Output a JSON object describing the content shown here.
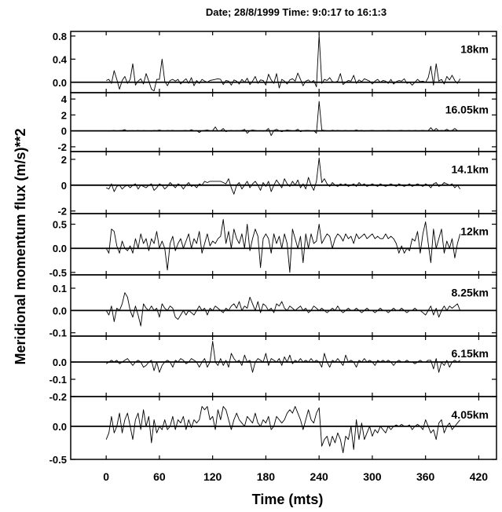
{
  "chart_data": {
    "type": "line",
    "title": "Date; 28/8/1999  Time:  9:0:17  to  16:1:3",
    "xlabel": "Time (mts)",
    "ylabel": "Meridional momentum flux (m/s)**2",
    "xlim": [
      -40,
      440
    ],
    "x_ticks": [
      0,
      60,
      120,
      180,
      240,
      300,
      360,
      420
    ],
    "x_tick_labels": [
      "0",
      "60",
      "120",
      "180",
      "240",
      "300",
      "360",
      "420"
    ],
    "grid": false,
    "x": [
      0,
      3,
      6,
      9,
      12,
      15,
      18,
      21,
      24,
      27,
      30,
      33,
      36,
      39,
      42,
      45,
      48,
      51,
      54,
      57,
      60,
      63,
      66,
      69,
      72,
      75,
      78,
      81,
      84,
      87,
      90,
      93,
      96,
      99,
      102,
      105,
      108,
      111,
      114,
      117,
      120,
      123,
      126,
      129,
      132,
      135,
      138,
      141,
      144,
      147,
      150,
      153,
      156,
      159,
      162,
      165,
      168,
      171,
      174,
      177,
      180,
      183,
      186,
      189,
      192,
      195,
      198,
      201,
      204,
      207,
      210,
      213,
      216,
      219,
      222,
      225,
      228,
      231,
      234,
      237,
      240,
      243,
      246,
      249,
      252,
      255,
      258,
      261,
      264,
      267,
      270,
      273,
      276,
      279,
      282,
      285,
      288,
      291,
      294,
      297,
      300,
      303,
      306,
      309,
      312,
      315,
      318,
      321,
      324,
      327,
      330,
      333,
      336,
      339,
      342,
      345,
      348,
      351,
      354,
      357,
      360,
      363,
      366,
      369,
      372,
      375,
      378,
      381,
      384,
      387,
      390,
      393,
      396,
      399
    ],
    "panels": [
      {
        "name": "18km",
        "ylim": [
          -0.18,
          0.88
        ],
        "y_ticks": [
          0.0,
          0.4,
          0.8
        ],
        "y_tick_labels": [
          "0.0",
          "0.4",
          "0.8"
        ],
        "values": [
          0.03,
          0.05,
          -0.02,
          0.2,
          0.05,
          -0.12,
          0.03,
          0.1,
          -0.02,
          0.05,
          0.32,
          -0.05,
          0.02,
          0.06,
          -0.03,
          0.15,
          0.02,
          -0.12,
          -0.15,
          0.05,
          0.05,
          0.4,
          0.02,
          -0.06,
          0.03,
          0.05,
          0.02,
          0.05,
          -0.03,
          0.02,
          0.06,
          -0.02,
          0.08,
          -0.06,
          0.03,
          -0.02,
          0.05,
          0.02,
          0.0,
          0.03,
          0.04,
          0.05,
          0.06,
          0.05,
          -0.04,
          0.03,
          0.02,
          -0.05,
          0.04,
          0.02,
          -0.03,
          0.05,
          0.0,
          0.07,
          -0.04,
          0.02,
          0.1,
          -0.02,
          0.04,
          0.03,
          -0.05,
          0.14,
          0.04,
          -0.02,
          0.15,
          -0.1,
          0.05,
          0.02,
          -0.03,
          0.04,
          0.06,
          0.02,
          0.16,
          0.05,
          -0.06,
          0.02,
          0.04,
          0.0,
          0.03,
          -0.08,
          0.82,
          -0.02,
          0.05,
          0.03,
          0.08,
          0.01,
          0.0,
          0.02,
          0.15,
          -0.04,
          0.0,
          0.03,
          0.02,
          0.12,
          -0.02,
          0.04,
          0.01,
          0.06,
          0.04,
          0.02,
          -0.03,
          0.02,
          0.05,
          0.0,
          0.03,
          0.02,
          -0.02,
          0.05,
          -0.03,
          0.01,
          0.03,
          0.02,
          0.06,
          -0.02,
          0.0,
          -0.05,
          0.0,
          0.05,
          0.01,
          0.02,
          0.0,
          0.08,
          0.28,
          -0.05,
          0.32,
          0.02,
          0.05,
          -0.03,
          0.1,
          0.04,
          0.12,
          0.03,
          -0.02,
          0.06
        ]
      },
      {
        "name": "16.05km",
        "ylim": [
          -2.6,
          4.8
        ],
        "y_ticks": [
          -2,
          0,
          2,
          4
        ],
        "y_tick_labels": [
          "-2",
          "0",
          "2",
          "4"
        ],
        "values": [
          0.0,
          -0.05,
          0.02,
          0.05,
          -0.03,
          0.03,
          0.05,
          0.15,
          -0.05,
          0.02,
          0.03,
          0.0,
          0.05,
          -0.02,
          0.04,
          0.02,
          0.0,
          -0.05,
          0.05,
          0.02,
          0.1,
          0.0,
          -0.03,
          0.05,
          0.02,
          0.06,
          -0.04,
          0.02,
          0.0,
          0.03,
          0.05,
          -0.02,
          0.15,
          0.0,
          0.04,
          -0.2,
          0.02,
          0.05,
          0.1,
          0.0,
          0.03,
          0.5,
          -0.05,
          0.02,
          0.3,
          -0.1,
          0.02,
          0.05,
          0.0,
          0.04,
          0.02,
          0.05,
          0.2,
          -0.3,
          0.02,
          0.1,
          0.05,
          0.0,
          0.03,
          -0.05,
          0.02,
          0.3,
          -0.6,
          0.05,
          0.2,
          0.0,
          -0.1,
          0.02,
          0.1,
          0.05,
          0.0,
          0.03,
          0.2,
          -0.1,
          0.0,
          0.05,
          0.05,
          0.0,
          0.03,
          -0.3,
          3.7,
          0.1,
          0.05,
          0.0,
          -0.05,
          0.08,
          0.0,
          0.05,
          0.02,
          0.0,
          0.05,
          -0.02,
          0.03,
          0.0,
          0.1,
          0.0,
          0.05,
          -0.05,
          0.02,
          0.03,
          0.05,
          0.0,
          0.02,
          -0.03,
          0.04,
          0.0,
          0.05,
          0.02,
          0.0,
          -0.02,
          0.03,
          0.05,
          0.0,
          0.02,
          0.04,
          -0.03,
          0.05,
          0.0,
          0.02,
          0.05,
          0.0,
          0.03,
          0.4,
          0.0,
          0.3,
          0.0,
          0.05,
          0.02,
          0.2,
          0.0,
          0.05,
          0.3,
          0.02,
          0.0
        ]
      },
      {
        "name": "14.1km",
        "ylim": [
          -2.2,
          2.6
        ],
        "y_ticks": [
          -2,
          0,
          2
        ],
        "y_tick_labels": [
          "-2",
          "0",
          "2"
        ],
        "values": [
          -0.2,
          -0.3,
          0.1,
          -0.5,
          -0.1,
          0.0,
          -0.3,
          -0.1,
          0.0,
          -0.2,
          0.0,
          0.1,
          -0.3,
          0.0,
          -0.1,
          -0.2,
          0.0,
          0.1,
          -0.4,
          -0.2,
          0.1,
          0.0,
          -0.3,
          -0.1,
          0.2,
          0.0,
          -0.2,
          0.1,
          0.0,
          -0.3,
          0.0,
          0.2,
          -0.1,
          0.0,
          -0.2,
          0.1,
          0.0,
          0.3,
          0.2,
          0.3,
          0.3,
          0.3,
          0.3,
          0.3,
          0.2,
          0.1,
          0.5,
          -0.2,
          -0.7,
          0.0,
          0.2,
          -0.3,
          0.0,
          0.3,
          -0.2,
          0.1,
          0.3,
          0.0,
          -0.4,
          0.2,
          -0.1,
          0.3,
          -0.5,
          0.0,
          0.4,
          0.1,
          -0.2,
          0.5,
          0.1,
          -0.1,
          0.3,
          0.0,
          0.4,
          -0.2,
          0.1,
          -0.3,
          0.6,
          0.0,
          -0.4,
          0.3,
          2.1,
          0.2,
          0.5,
          0.1,
          -0.1,
          0.2,
          0.0,
          -0.1,
          0.1,
          0.0,
          0.1,
          -0.1,
          0.0,
          0.1,
          -0.1,
          0.2,
          0.0,
          0.1,
          -0.1,
          0.0,
          0.1,
          0.0,
          -0.1,
          0.1,
          0.0,
          -0.1,
          0.0,
          0.1,
          0.0,
          -0.1,
          0.1,
          0.0,
          -0.1,
          0.0,
          0.1,
          -0.1,
          0.0,
          0.1,
          0.0,
          -0.1,
          0.1,
          0.0,
          -0.2,
          0.1,
          0.2,
          -0.1,
          0.0,
          0.2,
          0.1,
          0.0,
          0.1,
          -0.2,
          0.0,
          -0.3
        ]
      },
      {
        "name": "12km",
        "ylim": [
          -0.55,
          0.72
        ],
        "y_ticks": [
          -0.5,
          0.0,
          0.5
        ],
        "y_tick_labels": [
          "-0.5",
          "0.0",
          "0.5"
        ],
        "values": [
          0.0,
          -0.1,
          0.4,
          0.35,
          0.05,
          -0.1,
          0.15,
          0.0,
          -0.05,
          0.05,
          -0.1,
          0.2,
          0.0,
          0.3,
          0.1,
          0.2,
          -0.05,
          0.2,
          0.1,
          0.35,
          0.0,
          0.15,
          0.0,
          -0.45,
          0.1,
          0.25,
          -0.05,
          0.1,
          0.2,
          0.0,
          0.15,
          0.3,
          0.0,
          0.2,
          0.1,
          0.35,
          -0.1,
          0.1,
          0.3,
          0.05,
          0.15,
          0.1,
          0.2,
          0.25,
          0.6,
          0.1,
          0.35,
          0.0,
          0.4,
          0.2,
          0.1,
          0.3,
          0.0,
          0.5,
          -0.05,
          0.2,
          0.4,
          0.25,
          -0.4,
          0.2,
          0.3,
          0.2,
          -0.1,
          0.3,
          0.1,
          0.25,
          0.0,
          0.3,
          0.1,
          -0.5,
          0.4,
          0.2,
          0.0,
          0.25,
          -0.3,
          0.3,
          0.0,
          0.3,
          0.1,
          0.15,
          0.5,
          0.1,
          0.2,
          0.3,
          0.25,
          0.0,
          0.2,
          0.3,
          0.25,
          0.15,
          0.3,
          0.2,
          0.25,
          0.1,
          0.3,
          0.2,
          0.25,
          0.3,
          0.2,
          0.25,
          0.3,
          0.2,
          0.25,
          0.2,
          0.2,
          0.3,
          0.2,
          0.25,
          0.2,
          0.1,
          -0.1,
          0.05,
          -0.1,
          0.0,
          -0.05,
          0.2,
          0.15,
          0.35,
          -0.1,
          0.3,
          0.55,
          0.1,
          -0.3,
          0.4,
          0.0,
          0.2,
          0.4,
          -0.1,
          0.15,
          0.0,
          0.2,
          -0.2,
          0.1,
          0.3
        ]
      },
      {
        "name": "8.25km",
        "ylim": [
          -0.115,
          0.16
        ],
        "y_ticks": [
          -0.1,
          0.0,
          0.1
        ],
        "y_tick_labels": [
          "-0.1",
          "0.0",
          "0.1"
        ],
        "values": [
          0.0,
          -0.02,
          0.02,
          -0.05,
          0.01,
          0.0,
          0.03,
          0.08,
          0.06,
          0.0,
          -0.03,
          0.02,
          -0.02,
          -0.07,
          0.03,
          0.01,
          0.0,
          0.02,
          0.0,
          0.01,
          -0.03,
          0.03,
          0.01,
          0.0,
          0.02,
          0.01,
          -0.03,
          -0.04,
          -0.02,
          0.0,
          -0.02,
          0.0,
          -0.01,
          -0.02,
          0.0,
          0.02,
          0.0,
          0.01,
          -0.02,
          0.01,
          0.0,
          0.02,
          0.01,
          0.0,
          -0.01,
          0.01,
          0.0,
          0.02,
          0.03,
          0.01,
          0.04,
          0.0,
          0.02,
          0.01,
          0.06,
          0.03,
          0.0,
          0.04,
          -0.01,
          0.03,
          0.02,
          0.0,
          0.01,
          -0.01,
          0.03,
          0.02,
          0.04,
          0.01,
          0.0,
          0.02,
          0.01,
          0.0,
          0.01,
          0.02,
          0.0,
          0.01,
          -0.01,
          0.0,
          0.02,
          0.01,
          0.0,
          0.01,
          0.0,
          -0.01,
          0.0,
          0.01,
          0.0,
          0.02,
          0.0,
          -0.01,
          0.0,
          0.01,
          0.0,
          0.0,
          0.01,
          0.0,
          -0.01,
          0.0,
          0.01,
          0.0,
          0.0,
          -0.01,
          0.0,
          0.01,
          0.0,
          0.0,
          -0.01,
          0.0,
          0.01,
          0.0,
          0.0,
          0.01,
          0.0,
          -0.01,
          0.0,
          0.0,
          0.01,
          0.0,
          0.0,
          -0.01,
          -0.02,
          0.0,
          0.02,
          -0.02,
          0.01,
          -0.03,
          0.0,
          0.02,
          0.0,
          0.02,
          0.01,
          0.02,
          0.03,
          0.0
        ]
      },
      {
        "name": "6.15km",
        "ylim": [
          -0.2,
          0.15
        ],
        "y_ticks": [
          -0.2,
          -0.1,
          0.0
        ],
        "y_tick_labels": [
          "-0.2",
          "-0.1",
          "0.0"
        ],
        "values": [
          -0.01,
          0.0,
          0.01,
          0.0,
          0.01,
          -0.01,
          0.0,
          0.01,
          0.02,
          0.0,
          -0.02,
          0.0,
          0.01,
          0.0,
          -0.03,
          -0.02,
          0.0,
          0.01,
          -0.05,
          0.0,
          -0.06,
          -0.02,
          0.0,
          0.01,
          0.0,
          -0.03,
          0.01,
          0.0,
          0.02,
          0.01,
          -0.01,
          0.0,
          0.02,
          0.01,
          0.0,
          -0.03,
          0.0,
          0.02,
          -0.03,
          0.0,
          0.12,
          0.0,
          -0.02,
          0.02,
          -0.02,
          0.01,
          -0.03,
          0.05,
          0.02,
          0.0,
          0.01,
          -0.02,
          0.04,
          0.0,
          0.01,
          -0.06,
          0.0,
          0.02,
          0.01,
          0.0,
          0.05,
          -0.02,
          0.02,
          0.01,
          0.0,
          0.02,
          -0.02,
          0.03,
          0.0,
          0.04,
          -0.01,
          0.01,
          0.0,
          0.02,
          0.0,
          0.01,
          0.0,
          0.02,
          0.0,
          0.01,
          0.0,
          -0.03,
          0.05,
          0.0,
          -0.03,
          0.01,
          0.0,
          0.02,
          0.0,
          -0.02,
          0.04,
          0.0,
          0.01,
          0.0,
          -0.03,
          0.01,
          0.0,
          0.02,
          0.0,
          0.01,
          0.0,
          -0.02,
          0.01,
          0.0,
          0.01,
          0.0,
          0.01,
          0.0,
          -0.02,
          0.0,
          0.01,
          0.0,
          0.0,
          0.01,
          0.0,
          0.0,
          -0.01,
          0.0,
          0.01,
          0.0,
          0.0,
          0.01,
          0.01,
          -0.04,
          0.02,
          -0.06,
          0.0,
          -0.02,
          0.01,
          -0.03,
          0.0,
          0.01,
          0.0,
          0.01
        ]
      },
      {
        "name": "4.05km",
        "ylim": [
          -0.5,
          0.45
        ],
        "y_ticks": [
          -0.5,
          0.0
        ],
        "y_tick_labels": [
          "-0.5",
          "0.0"
        ],
        "values": [
          -0.2,
          -0.1,
          0.15,
          -0.1,
          0.0,
          0.2,
          -0.1,
          0.1,
          0.2,
          0.0,
          -0.2,
          0.1,
          0.2,
          -0.05,
          0.25,
          0.0,
          0.15,
          -0.25,
          0.1,
          -0.1,
          0.0,
          -0.05,
          0.1,
          -0.05,
          0.0,
          0.15,
          -0.05,
          0.1,
          0.05,
          0.15,
          -0.05,
          0.1,
          -0.02,
          0.1,
          0.05,
          0.1,
          0.3,
          0.25,
          0.3,
          0.1,
          0.15,
          -0.05,
          0.25,
          0.1,
          0.3,
          0.25,
          0.1,
          -0.05,
          0.1,
          0.2,
          0.1,
          0.05,
          0.0,
          0.15,
          0.1,
          0.05,
          0.2,
          0.05,
          0.0,
          0.1,
          0.05,
          0.15,
          -0.05,
          0.0,
          0.15,
          0.1,
          0.05,
          0.1,
          0.2,
          0.25,
          0.2,
          0.3,
          0.2,
          0.1,
          -0.05,
          0.1,
          0.25,
          0.1,
          0.05,
          0.2,
          0.28,
          -0.3,
          -0.2,
          -0.15,
          -0.3,
          -0.15,
          -0.25,
          -0.1,
          -0.2,
          -0.4,
          -0.15,
          -0.2,
          0.0,
          -0.35,
          0.1,
          -0.2,
          0.05,
          -0.2,
          -0.1,
          0.0,
          -0.15,
          -0.05,
          -0.1,
          0.0,
          -0.05,
          -0.1,
          0.0,
          -0.05,
          0.0,
          0.02,
          0.0,
          0.03,
          0.0,
          0.0,
          0.02,
          -0.05,
          0.0,
          0.03,
          0.0,
          -0.05,
          0.1,
          0.0,
          -0.1,
          -0.05,
          -0.2,
          0.05,
          0.1,
          -0.1,
          0.0,
          0.05,
          -0.05,
          0.0,
          0.05,
          0.1
        ]
      }
    ]
  }
}
